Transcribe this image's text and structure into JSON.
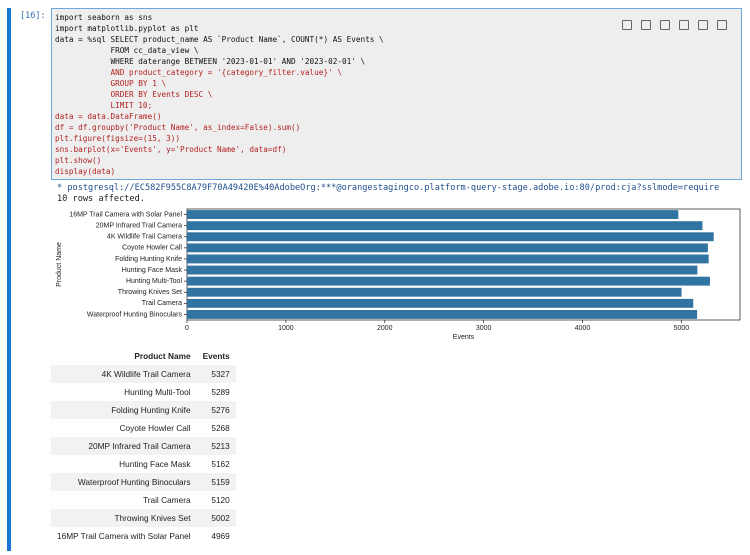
{
  "cell": {
    "prompt": "[16]:",
    "code_lines": [
      "import seaborn as sns",
      "import matplotlib.pyplot as plt",
      "data = %sql SELECT product_name AS `Product Name`, COUNT(*) AS Events \\",
      "            FROM cc_data_view \\",
      "            WHERE daterange BETWEEN '2023-01-01' AND '2023-02-01' \\",
      "            AND product_category = '{category_filter.value}' \\",
      "            GROUP BY 1 \\",
      "            ORDER BY Events DESC \\",
      "            LIMIT 10;",
      "data = data.DataFrame()",
      "df = df.groupby('Product Name', as_index=False).sum()",
      "plt.figure(figsize=(15, 3))",
      "sns.barplot(x='Events', y='Product Name', data=df)",
      "plt.show()",
      "display(data)"
    ]
  },
  "output": {
    "connection": "* postgresql://EC582F955C8A79F70A49420E%40AdobeOrg:***@orangestagingco.platform-query-stage.adobe.io:80/prod:cja?sslmode=require",
    "rows_affected": "10 rows affected."
  },
  "chart_data": {
    "type": "barh",
    "xlabel": "Events",
    "ylabel": "Product Name",
    "categories": [
      "16MP Trail Camera with Solar Panel",
      "20MP Infrared Trail Camera",
      "4K Wildlife Trail Camera",
      "Coyote Howler Call",
      "Folding Hunting Knife",
      "Hunting Face Mask",
      "Hunting Multi-Tool",
      "Throwing Knives Set",
      "Trail Camera",
      "Waterproof Hunting Binoculars"
    ],
    "values": [
      4969,
      5213,
      5327,
      5268,
      5276,
      5162,
      5289,
      5002,
      5120,
      5159
    ],
    "color": "#3274a1",
    "xlim": [
      0,
      5593
    ],
    "xticks": [
      0,
      1000,
      2000,
      3000,
      4000,
      5000
    ]
  },
  "table": {
    "columns": [
      "Product Name",
      "Events"
    ],
    "rows": [
      [
        "4K Wildlife Trail Camera",
        "5327"
      ],
      [
        "Hunting Multi-Tool",
        "5289"
      ],
      [
        "Folding Hunting Knife",
        "5276"
      ],
      [
        "Coyote Howler Call",
        "5268"
      ],
      [
        "20MP Infrared Trail Camera",
        "5213"
      ],
      [
        "Hunting Face Mask",
        "5162"
      ],
      [
        "Waterproof Hunting Binoculars",
        "5159"
      ],
      [
        "Trail Camera",
        "5120"
      ],
      [
        "Throwing Knives Set",
        "5002"
      ],
      [
        "16MP Trail Camera with Solar Panel",
        "4969"
      ]
    ]
  }
}
